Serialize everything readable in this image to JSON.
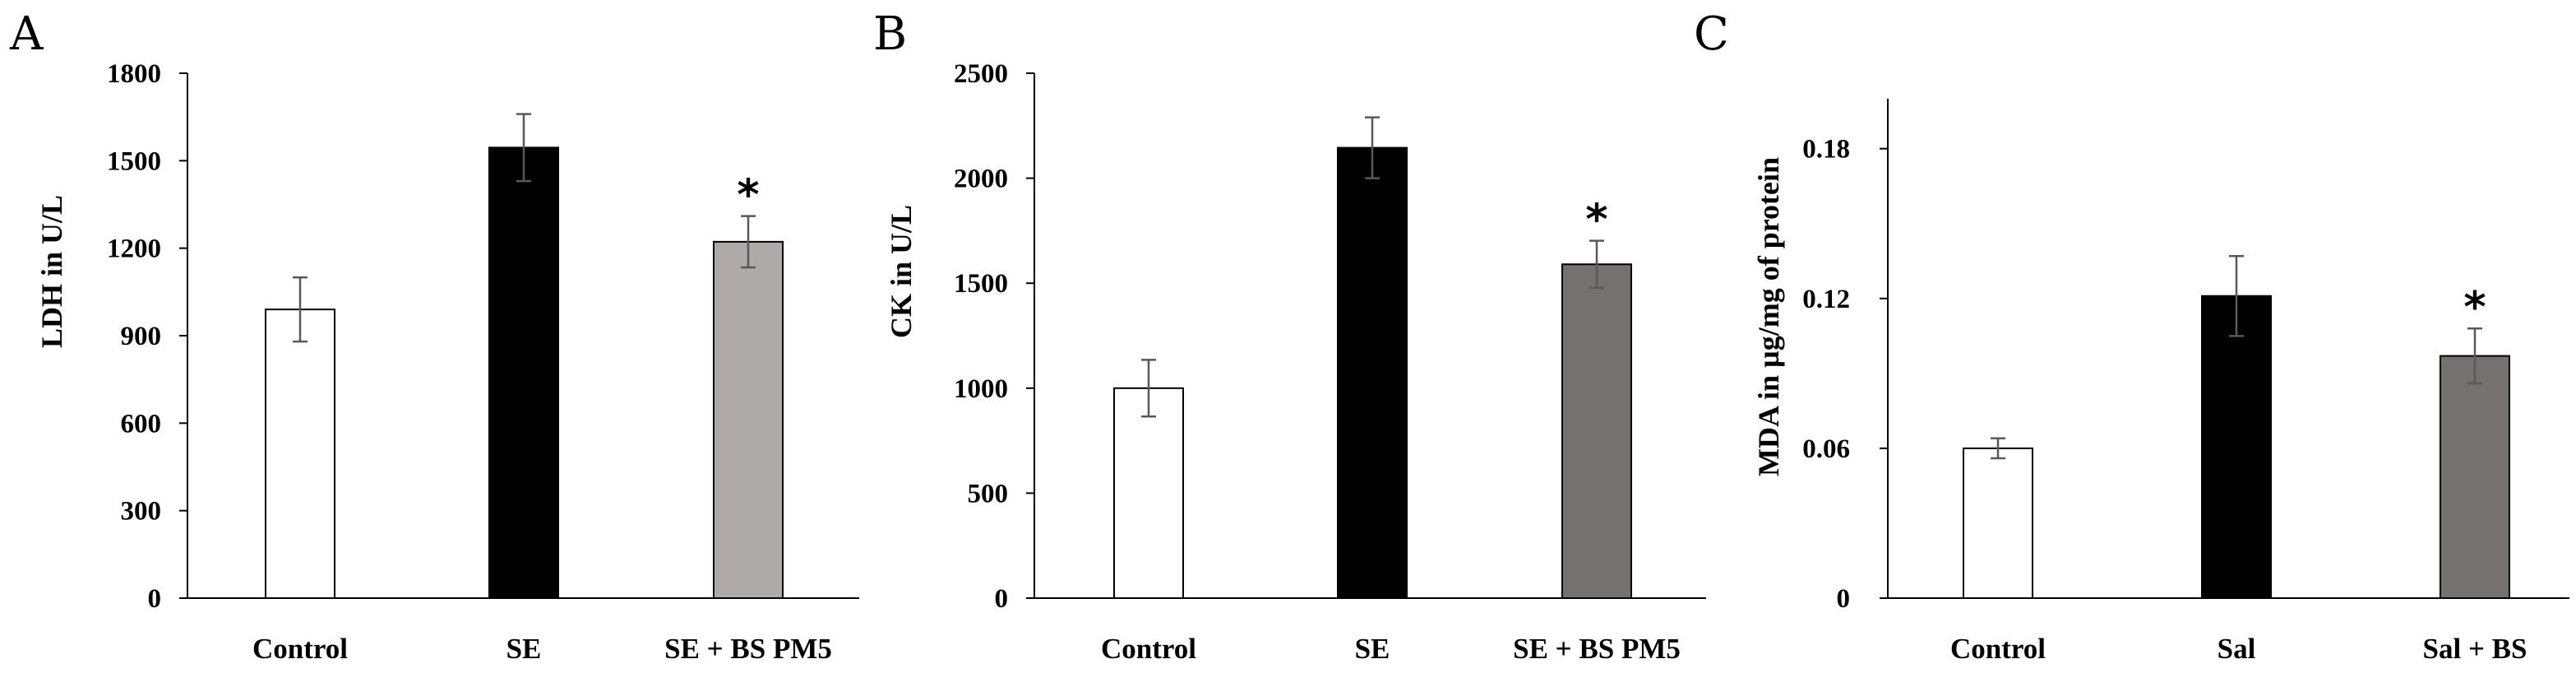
{
  "chart_data": [
    {
      "type": "bar",
      "panel": "A",
      "ylabel": "LDH in U/L",
      "ylim": [
        0,
        1800
      ],
      "yticks": [
        0,
        300,
        600,
        900,
        1200,
        1500,
        1800
      ],
      "categories": [
        "Control",
        "SE",
        "SE + BS PM5"
      ],
      "values": [
        990,
        1545,
        1222
      ],
      "errors": [
        110,
        115,
        88
      ],
      "colors": [
        "#ffffff",
        "#000000",
        "#aeaaaa"
      ],
      "annotations": [
        "",
        "",
        "*"
      ]
    },
    {
      "type": "bar",
      "panel": "B",
      "ylabel": "CK in U/L",
      "ylim": [
        0,
        2500
      ],
      "yticks": [
        0,
        500,
        1000,
        1500,
        2000,
        2500
      ],
      "categories": [
        "Control",
        "SE",
        "SE + BS PM5"
      ],
      "values": [
        1000,
        2145,
        1590
      ],
      "errors": [
        135,
        145,
        112
      ],
      "colors": [
        "#ffffff",
        "#000000",
        "#767171"
      ],
      "annotations": [
        "",
        "",
        "*"
      ]
    },
    {
      "type": "bar",
      "panel": "C",
      "ylabel": "MDA in µg/mg of protein",
      "ylim": [
        0,
        0.2
      ],
      "yticks": [
        "0",
        "0.06",
        "0.12",
        "0.18"
      ],
      "yticks_values": [
        0,
        0.06,
        0.12,
        0.18
      ],
      "categories": [
        "Control",
        "Sal",
        "Sal + BS"
      ],
      "values": [
        0.06,
        0.121,
        0.097
      ],
      "errors": [
        0.004,
        0.016,
        0.011
      ],
      "colors": [
        "#ffffff",
        "#000000",
        "#767171"
      ],
      "annotations": [
        "",
        "",
        "*"
      ]
    }
  ]
}
